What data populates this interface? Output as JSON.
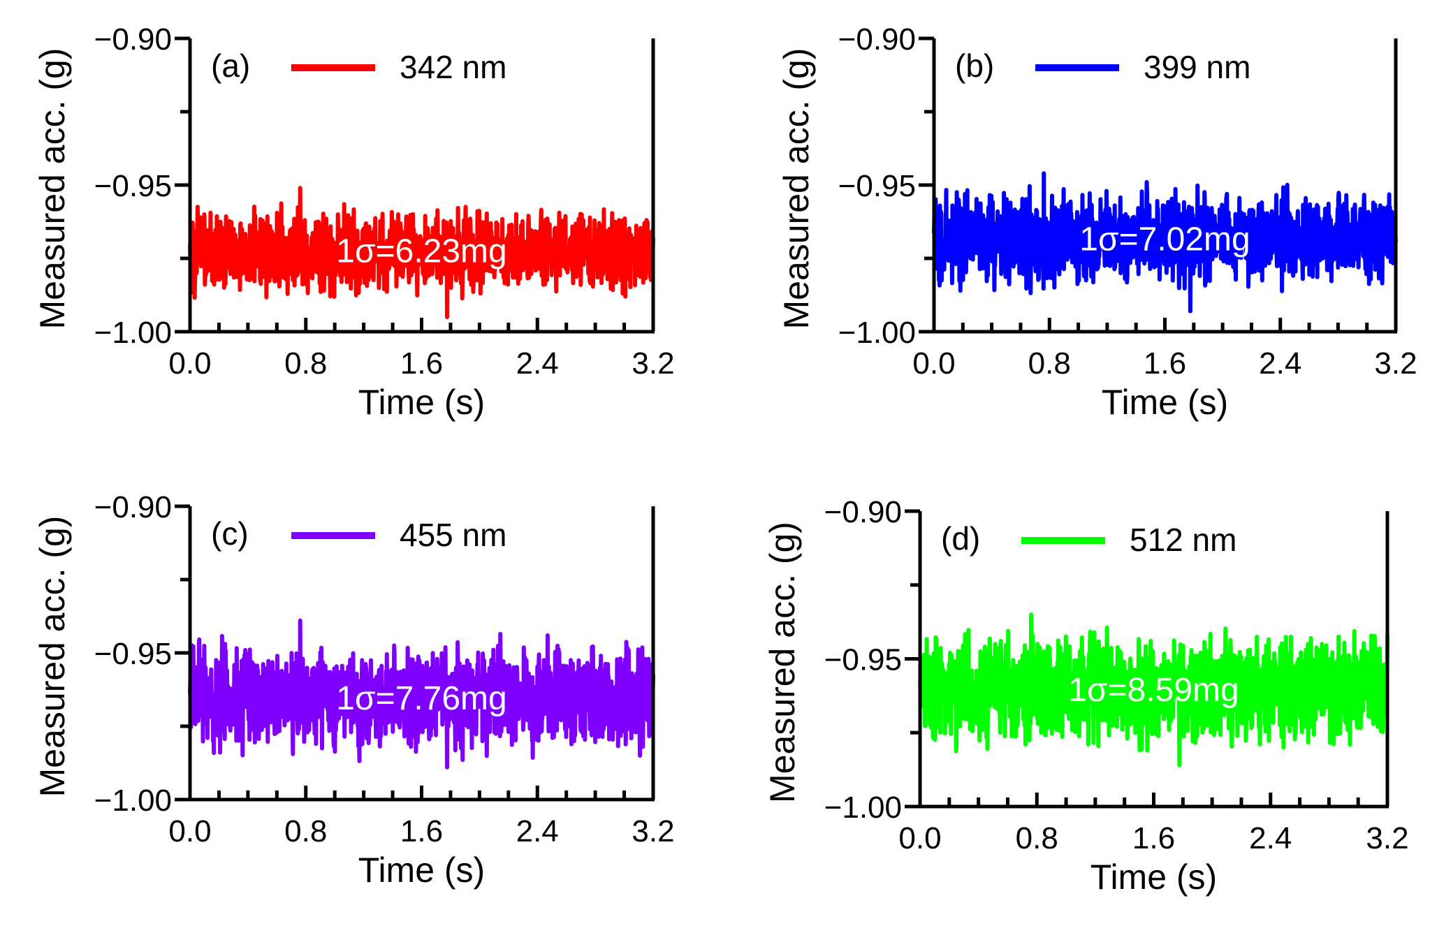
{
  "chart_data": [
    {
      "type": "line",
      "panel_label": "(a)",
      "series": [
        {
          "name": "342 nm",
          "color": "#ff0000",
          "mean": -0.9725,
          "sigma": 0.00623,
          "max": -0.951,
          "min": -0.995
        }
      ],
      "annotation": "1σ=6.23mg",
      "xlabel": "Time (s)",
      "ylabel": "Measured acc. (g)",
      "xlim": [
        0,
        3.2
      ],
      "ylim": [
        -1.0,
        -0.9
      ],
      "xticks": [
        "0.0",
        "0.8",
        "1.6",
        "2.4",
        "3.2"
      ],
      "yticks": [
        "−0.90",
        "−0.95",
        "−1.00"
      ],
      "legend_position": "top"
    },
    {
      "type": "line",
      "panel_label": "(b)",
      "series": [
        {
          "name": "399 nm",
          "color": "#0000ff",
          "mean": -0.9685,
          "sigma": 0.00702,
          "max": -0.946,
          "min": -0.993
        }
      ],
      "annotation": "1σ=7.02mg",
      "xlabel": "Time (s)",
      "ylabel": "Measured acc. (g)",
      "xlim": [
        0,
        3.2
      ],
      "ylim": [
        -1.0,
        -0.9
      ],
      "xticks": [
        "0.0",
        "0.8",
        "1.6",
        "2.4",
        "3.2"
      ],
      "yticks": [
        "−0.90",
        "−0.95",
        "−1.00"
      ],
      "legend_position": "top"
    },
    {
      "type": "line",
      "panel_label": "(c)",
      "series": [
        {
          "name": "455 nm",
          "color": "#8000ff",
          "mean": -0.9655,
          "sigma": 0.00776,
          "max": -0.939,
          "min": -0.989
        }
      ],
      "annotation": "1σ=7.76mg",
      "xlabel": "Time (s)",
      "ylabel": "Measured acc. (g)",
      "xlim": [
        0,
        3.2
      ],
      "ylim": [
        -1.0,
        -0.9
      ],
      "xticks": [
        "0.0",
        "0.8",
        "1.6",
        "2.4",
        "3.2"
      ],
      "yticks": [
        "−0.90",
        "−0.95",
        "−1.00"
      ],
      "legend_position": "top"
    },
    {
      "type": "line",
      "panel_label": "(d)",
      "series": [
        {
          "name": "512 nm",
          "color": "#00ff00",
          "mean": -0.9605,
          "sigma": 0.00859,
          "max": -0.935,
          "min": -0.986
        }
      ],
      "annotation": "1σ=8.59mg",
      "xlabel": "Time (s)",
      "ylabel": "Measured acc. (g)",
      "xlim": [
        0,
        3.2
      ],
      "ylim": [
        -1.0,
        -0.9
      ],
      "xticks": [
        "0.0",
        "0.8",
        "1.6",
        "2.4",
        "3.2"
      ],
      "yticks": [
        "−0.90",
        "−0.95",
        "−1.00"
      ],
      "legend_position": "top"
    }
  ]
}
